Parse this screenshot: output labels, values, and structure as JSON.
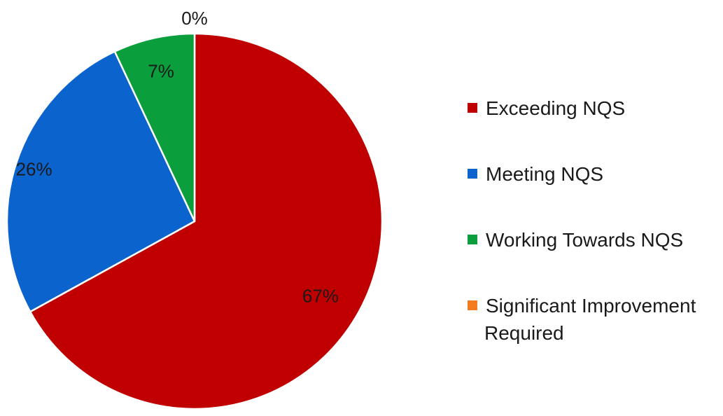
{
  "chart_data": {
    "type": "pie",
    "title": "",
    "legend_position": "right",
    "slices": [
      {
        "label": "Exceeding NQS",
        "value": 67,
        "display": "67%",
        "color": "#C00000"
      },
      {
        "label": "Meeting NQS",
        "value": 26,
        "display": "26%",
        "color": "#0B63CE"
      },
      {
        "label": "Working Towards NQS",
        "value": 7,
        "display": "7%",
        "color": "#0A9E3C"
      },
      {
        "label": "Significant Improvement Required",
        "display": "0%",
        "value": 0,
        "color": "#F47B20",
        "legend_lines": [
          "Significant Improvement",
          "Required"
        ]
      }
    ]
  }
}
